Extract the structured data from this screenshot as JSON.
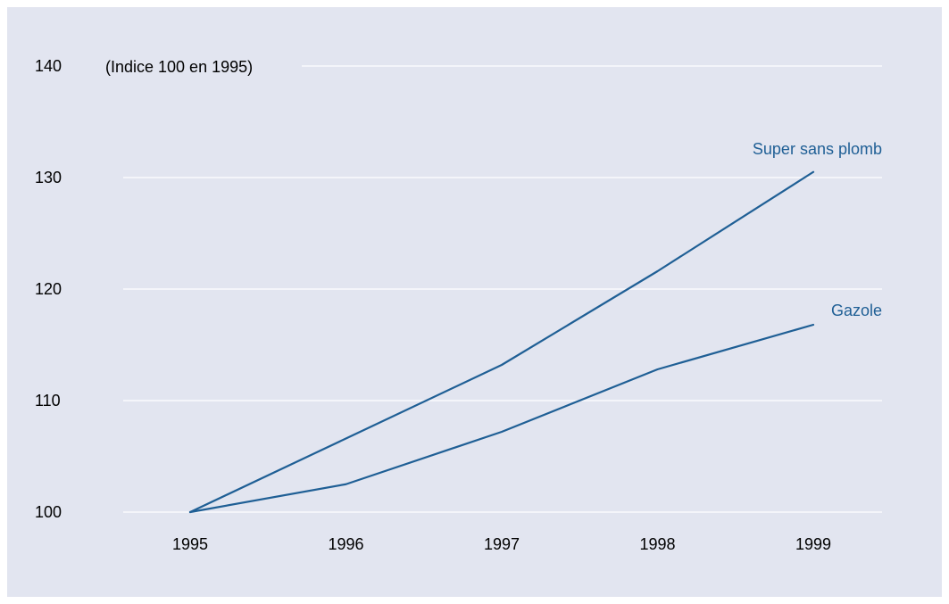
{
  "chart_data": {
    "type": "line",
    "unit_note": "(Indice 100 en 1995)",
    "x": [
      "1995",
      "1996",
      "1997",
      "1998",
      "1999"
    ],
    "yticks": [
      100,
      110,
      120,
      130,
      140
    ],
    "ylim": [
      100,
      140
    ],
    "grid": true,
    "series": [
      {
        "name": "Super sans plomb",
        "values": [
          100,
          106.6,
          113.2,
          121.6,
          130.5
        ],
        "color": "#1f5f95"
      },
      {
        "name": "Gazole",
        "values": [
          100,
          102.5,
          107.2,
          112.8,
          116.8
        ],
        "color": "#1f5f95"
      }
    ],
    "background": "#e2e5f0"
  }
}
